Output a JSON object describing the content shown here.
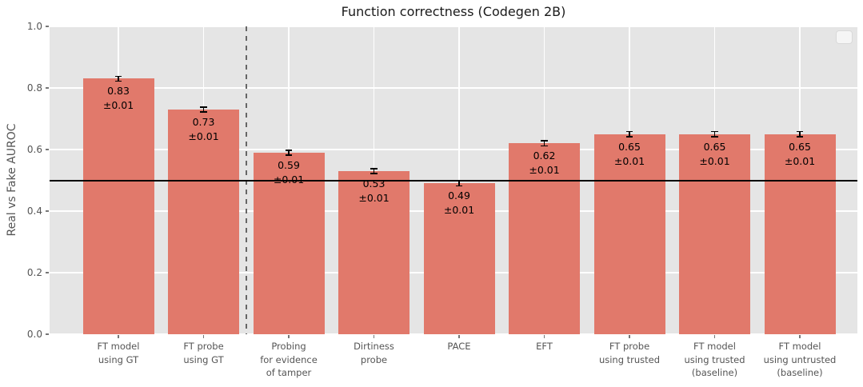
{
  "chart_data": {
    "type": "bar",
    "title": "Function correctness (Codegen 2B)",
    "ylabel": "Real vs Fake AUROC",
    "xlabel": "",
    "ylim": [
      0.0,
      1.0
    ],
    "ytick_labels": [
      "0.0",
      "0.2",
      "0.4",
      "0.6",
      "0.8",
      "1.0"
    ],
    "grid": true,
    "legend": {
      "visible": true,
      "entries": [],
      "position": "upper-right"
    },
    "baseline_y": 0.5,
    "divider_after_index": 1,
    "bars": [
      {
        "category_lines": [
          "FT model",
          "using GT"
        ],
        "value": 0.83,
        "error": 0.01,
        "label_value": "0.83",
        "label_error": "±0.01"
      },
      {
        "category_lines": [
          "FT probe",
          "using GT"
        ],
        "value": 0.73,
        "error": 0.01,
        "label_value": "0.73",
        "label_error": "±0.01"
      },
      {
        "category_lines": [
          "Probing",
          "for evidence",
          "of tamper"
        ],
        "value": 0.59,
        "error": 0.01,
        "label_value": "0.59",
        "label_error": "±0.01"
      },
      {
        "category_lines": [
          "Dirtiness",
          "probe"
        ],
        "value": 0.53,
        "error": 0.01,
        "label_value": "0.53",
        "label_error": "±0.01"
      },
      {
        "category_lines": [
          "PACE"
        ],
        "value": 0.49,
        "error": 0.01,
        "label_value": "0.49",
        "label_error": "±0.01"
      },
      {
        "category_lines": [
          "EFT"
        ],
        "value": 0.62,
        "error": 0.01,
        "label_value": "0.62",
        "label_error": "±0.01"
      },
      {
        "category_lines": [
          "FT probe",
          "using trusted"
        ],
        "value": 0.65,
        "error": 0.01,
        "label_value": "0.65",
        "label_error": "±0.01"
      },
      {
        "category_lines": [
          "FT model",
          "using trusted",
          "(baseline)"
        ],
        "value": 0.65,
        "error": 0.01,
        "label_value": "0.65",
        "label_error": "±0.01"
      },
      {
        "category_lines": [
          "FT model",
          "using untrusted",
          "(baseline)"
        ],
        "value": 0.65,
        "error": 0.01,
        "label_value": "0.65",
        "label_error": "±0.01"
      }
    ],
    "colors": {
      "bar": "#e1796b",
      "plot_bg": "#e5e5e5",
      "grid": "#ffffff",
      "baseline": "#000000",
      "divider": "#666666",
      "axis_text": "#555555",
      "title_text": "#1a1a1a",
      "bar_label_text": "#000000",
      "error_bar": "#000000",
      "legend_border": "#d9d9d9"
    }
  }
}
